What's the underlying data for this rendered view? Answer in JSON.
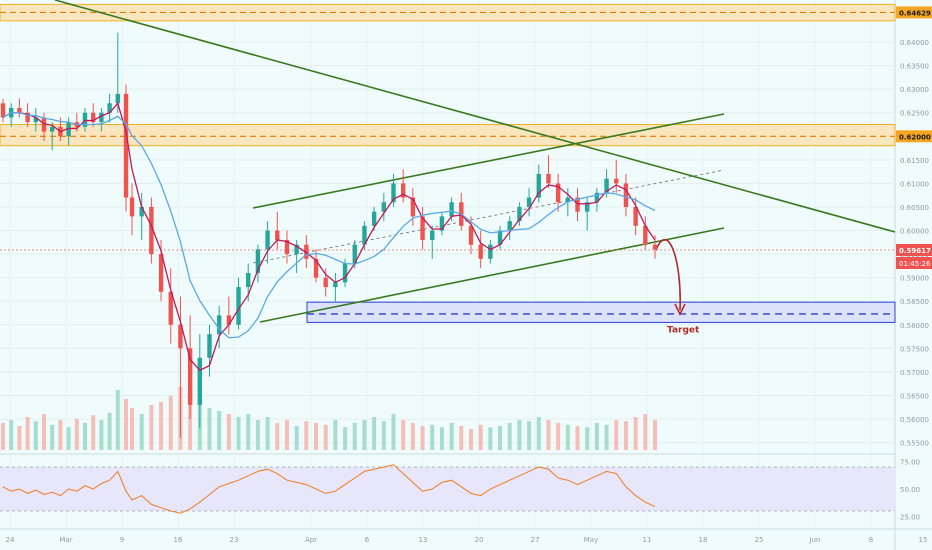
{
  "chart_data": {
    "type": "candlestick",
    "series_label": "",
    "price_axis": {
      "ticks": [
        "0.64000",
        "0.63500",
        "0.63000",
        "0.62500",
        "0.62000",
        "0.61500",
        "0.61000",
        "0.60500",
        "0.60000",
        "0.59500",
        "0.59000",
        "0.58500",
        "0.58000",
        "0.57500",
        "0.57000",
        "0.56500",
        "0.56000",
        "0.55500"
      ],
      "range": [
        0.553,
        0.6485
      ]
    },
    "time_axis": {
      "ticks": [
        "24",
        "Mar",
        "9",
        "16",
        "23",
        "Apr",
        "6",
        "13",
        "20",
        "27",
        "May",
        "11",
        "18",
        "25",
        "Jun",
        "8",
        "15"
      ]
    },
    "rsi": {
      "ticks": [
        "75.00",
        "50.00",
        "25.00"
      ],
      "range": [
        20,
        80
      ]
    },
    "price_levels": [
      {
        "name": "resistance-upper",
        "value": 0.64629,
        "label": "0.64629"
      },
      {
        "name": "resistance-lower",
        "value": 0.62,
        "label": "0.62000"
      }
    ],
    "current_price": {
      "value": 0.59617,
      "label": "0.59617",
      "countdown": "01:45:26"
    },
    "target_zone": {
      "low": 0.5805,
      "high": 0.5848,
      "mid": 0.5823,
      "label": "Target"
    },
    "candles_ohlc": [
      [
        0.627,
        0.628,
        0.623,
        0.624
      ],
      [
        0.624,
        0.627,
        0.622,
        0.626
      ],
      [
        0.626,
        0.628,
        0.624,
        0.625
      ],
      [
        0.625,
        0.627,
        0.622,
        0.623
      ],
      [
        0.623,
        0.626,
        0.621,
        0.624
      ],
      [
        0.624,
        0.625,
        0.619,
        0.621
      ],
      [
        0.621,
        0.623,
        0.617,
        0.622
      ],
      [
        0.622,
        0.624,
        0.619,
        0.62
      ],
      [
        0.62,
        0.624,
        0.618,
        0.623
      ],
      [
        0.623,
        0.625,
        0.621,
        0.622
      ],
      [
        0.622,
        0.626,
        0.621,
        0.625
      ],
      [
        0.625,
        0.627,
        0.622,
        0.623
      ],
      [
        0.623,
        0.626,
        0.621,
        0.625
      ],
      [
        0.625,
        0.629,
        0.623,
        0.627
      ],
      [
        0.627,
        0.642,
        0.625,
        0.629
      ],
      [
        0.629,
        0.631,
        0.604,
        0.607
      ],
      [
        0.607,
        0.61,
        0.599,
        0.603
      ],
      [
        0.603,
        0.608,
        0.598,
        0.605
      ],
      [
        0.605,
        0.607,
        0.593,
        0.595
      ],
      [
        0.595,
        0.598,
        0.585,
        0.587
      ],
      [
        0.587,
        0.592,
        0.576,
        0.58
      ],
      [
        0.58,
        0.586,
        0.556,
        0.575
      ],
      [
        0.575,
        0.582,
        0.56,
        0.563
      ],
      [
        0.563,
        0.578,
        0.558,
        0.573
      ],
      [
        0.573,
        0.58,
        0.569,
        0.578
      ],
      [
        0.578,
        0.584,
        0.575,
        0.582
      ],
      [
        0.582,
        0.586,
        0.578,
        0.58
      ],
      [
        0.58,
        0.59,
        0.579,
        0.588
      ],
      [
        0.588,
        0.593,
        0.585,
        0.591
      ],
      [
        0.591,
        0.597,
        0.589,
        0.596
      ],
      [
        0.596,
        0.602,
        0.593,
        0.6
      ],
      [
        0.6,
        0.604,
        0.596,
        0.598
      ],
      [
        0.598,
        0.6,
        0.593,
        0.595
      ],
      [
        0.595,
        0.598,
        0.591,
        0.597
      ],
      [
        0.597,
        0.599,
        0.592,
        0.594
      ],
      [
        0.594,
        0.596,
        0.589,
        0.59
      ],
      [
        0.59,
        0.592,
        0.586,
        0.588
      ],
      [
        0.588,
        0.591,
        0.585,
        0.589
      ],
      [
        0.589,
        0.594,
        0.588,
        0.593
      ],
      [
        0.593,
        0.598,
        0.592,
        0.597
      ],
      [
        0.597,
        0.602,
        0.596,
        0.601
      ],
      [
        0.601,
        0.605,
        0.6,
        0.604
      ],
      [
        0.604,
        0.608,
        0.602,
        0.606
      ],
      [
        0.606,
        0.612,
        0.605,
        0.61
      ],
      [
        0.61,
        0.613,
        0.606,
        0.607
      ],
      [
        0.607,
        0.609,
        0.601,
        0.603
      ],
      [
        0.603,
        0.605,
        0.596,
        0.598
      ],
      [
        0.598,
        0.601,
        0.594,
        0.6
      ],
      [
        0.6,
        0.604,
        0.599,
        0.603
      ],
      [
        0.603,
        0.607,
        0.602,
        0.606
      ],
      [
        0.606,
        0.608,
        0.6,
        0.601
      ],
      [
        0.601,
        0.603,
        0.595,
        0.597
      ],
      [
        0.597,
        0.6,
        0.592,
        0.594
      ],
      [
        0.594,
        0.598,
        0.593,
        0.597
      ],
      [
        0.597,
        0.601,
        0.596,
        0.6
      ],
      [
        0.6,
        0.603,
        0.598,
        0.602
      ],
      [
        0.602,
        0.606,
        0.601,
        0.605
      ],
      [
        0.605,
        0.609,
        0.603,
        0.607
      ],
      [
        0.607,
        0.614,
        0.606,
        0.612
      ],
      [
        0.612,
        0.616,
        0.609,
        0.61
      ],
      [
        0.61,
        0.612,
        0.604,
        0.606
      ],
      [
        0.606,
        0.609,
        0.603,
        0.607
      ],
      [
        0.607,
        0.609,
        0.602,
        0.604
      ],
      [
        0.604,
        0.607,
        0.6,
        0.606
      ],
      [
        0.606,
        0.609,
        0.604,
        0.608
      ],
      [
        0.608,
        0.613,
        0.607,
        0.611
      ],
      [
        0.611,
        0.615,
        0.608,
        0.61
      ],
      [
        0.61,
        0.612,
        0.603,
        0.605
      ],
      [
        0.605,
        0.607,
        0.599,
        0.601
      ],
      [
        0.601,
        0.603,
        0.596,
        0.597
      ],
      [
        0.597,
        0.599,
        0.594,
        0.596
      ]
    ],
    "volume": [
      0.45,
      0.5,
      0.4,
      0.55,
      0.48,
      0.6,
      0.42,
      0.5,
      0.38,
      0.52,
      0.45,
      0.58,
      0.5,
      0.62,
      1.0,
      0.85,
      0.7,
      0.6,
      0.75,
      0.8,
      0.9,
      1.05,
      0.95,
      0.8,
      0.7,
      0.65,
      0.6,
      0.55,
      0.6,
      0.5,
      0.55,
      0.45,
      0.5,
      0.4,
      0.48,
      0.45,
      0.42,
      0.5,
      0.38,
      0.45,
      0.5,
      0.55,
      0.48,
      0.6,
      0.5,
      0.45,
      0.4,
      0.42,
      0.38,
      0.45,
      0.4,
      0.35,
      0.42,
      0.38,
      0.4,
      0.45,
      0.5,
      0.48,
      0.55,
      0.5,
      0.45,
      0.42,
      0.4,
      0.38,
      0.45,
      0.42,
      0.5,
      0.48,
      0.55,
      0.6,
      0.5
    ],
    "rsi_values": [
      52,
      48,
      50,
      46,
      49,
      45,
      47,
      44,
      50,
      48,
      53,
      50,
      55,
      58,
      66,
      48,
      40,
      44,
      36,
      33,
      30,
      28,
      32,
      38,
      45,
      52,
      55,
      58,
      62,
      66,
      68,
      64,
      58,
      56,
      54,
      50,
      46,
      48,
      54,
      60,
      66,
      68,
      70,
      72,
      64,
      56,
      48,
      50,
      56,
      58,
      52,
      46,
      44,
      50,
      54,
      58,
      62,
      66,
      70,
      68,
      60,
      58,
      54,
      58,
      62,
      66,
      64,
      52,
      44,
      38,
      34
    ]
  }
}
